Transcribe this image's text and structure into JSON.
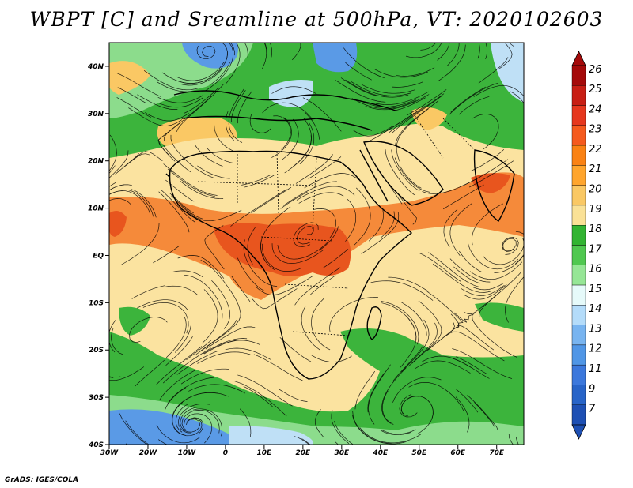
{
  "title": "WBPT [C] and Sreamline at 500hPa, VT: 2020102603",
  "credit": "GrADS: IGES/COLA",
  "map": {
    "lon_range": [
      -30,
      77
    ],
    "lat_range": [
      -40,
      45
    ],
    "lon_ticks": [
      {
        "value": -30,
        "label": "30W"
      },
      {
        "value": -20,
        "label": "20W"
      },
      {
        "value": -10,
        "label": "10W"
      },
      {
        "value": 0,
        "label": "0"
      },
      {
        "value": 10,
        "label": "10E"
      },
      {
        "value": 20,
        "label": "20E"
      },
      {
        "value": 30,
        "label": "30E"
      },
      {
        "value": 40,
        "label": "40E"
      },
      {
        "value": 50,
        "label": "50E"
      },
      {
        "value": 60,
        "label": "60E"
      },
      {
        "value": 70,
        "label": "70E"
      }
    ],
    "lat_ticks": [
      {
        "value": 40,
        "label": "40N"
      },
      {
        "value": 30,
        "label": "30N"
      },
      {
        "value": 20,
        "label": "20N"
      },
      {
        "value": 10,
        "label": "10N"
      },
      {
        "value": 0,
        "label": "EQ"
      },
      {
        "value": -10,
        "label": "10S"
      },
      {
        "value": -20,
        "label": "20S"
      },
      {
        "value": -30,
        "label": "30S"
      },
      {
        "value": -40,
        "label": "40S"
      }
    ]
  },
  "colorbar": {
    "levels": [
      "26",
      "25",
      "24",
      "23",
      "22",
      "21",
      "20",
      "19",
      "18",
      "17",
      "16",
      "15",
      "14",
      "13",
      "12",
      "11",
      "9",
      "7"
    ],
    "colors": [
      "#a50a0a",
      "#c81e14",
      "#e6371e",
      "#f55a1e",
      "#fa8214",
      "#ffa52d",
      "#fac864",
      "#fae196",
      "#32b432",
      "#50c850",
      "#96e696",
      "#e6fafa",
      "#b4dcfa",
      "#78b4f0",
      "#5096e6",
      "#3c78dc",
      "#2864c8",
      "#1e50b4"
    ]
  },
  "fields": {
    "hot_color": "#f58a3a",
    "core_color": "#e8551e",
    "warm_color": "#fac864",
    "pale_color": "#fbe3a0",
    "green_color": "#3cb43c",
    "lightgreen_color": "#8cdc8c",
    "cold_color": "#5a9ae6",
    "sky_color": "#bfe0f6"
  }
}
